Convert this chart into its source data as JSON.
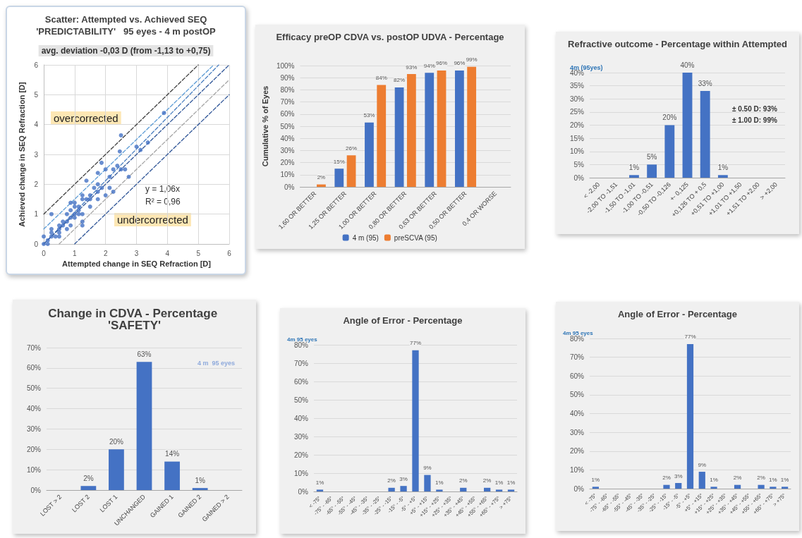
{
  "chart_data": [
    {
      "type": "scatter",
      "title": "Scatter: Attempted vs. Achieved SEQ",
      "subtitle": "'PREDICTABILITY'   95 eyes - 4 m postOP",
      "xlabel": "Attempted change in SEQ Refraction [D]",
      "ylabel": "Achieved change in SEQ Refraction [D]",
      "xlim": [
        0,
        6
      ],
      "xticks": [
        0,
        1,
        2,
        3,
        4,
        5,
        6
      ],
      "ylim": [
        0,
        6
      ],
      "yticks": [
        0,
        1,
        2,
        3,
        4,
        5,
        6
      ],
      "grid": true,
      "legend": false,
      "annotations": [
        "avg. deviation -0,03 D (from -1,13 to +0,75)",
        "overcorrected",
        "y = 1,06x",
        "R² = 0,96",
        "undercorrected"
      ],
      "series": [
        {
          "type": "scatter",
          "marker": "circle",
          "color": "#4472c4",
          "x": [
            0,
            0,
            0.13,
            0.13,
            0.25,
            0.25,
            0.25,
            0.25,
            0.38,
            0.5,
            0.5,
            0.5,
            0.5,
            0.62,
            0.62,
            0.75,
            0.75,
            0.75,
            0.87,
            0.87,
            0.87,
            0.87,
            1,
            1,
            1,
            1,
            1.13,
            1.13,
            1.13,
            1.25,
            1.25,
            1.25,
            1.25,
            1.25,
            1.38,
            1.38,
            1.5,
            1.5,
            1.5,
            1.63,
            1.75,
            1.75,
            1.75,
            1.75,
            1.87,
            1.88,
            2,
            2,
            2.13,
            2.13,
            2.25,
            2.25,
            2.38,
            2.46,
            2.5,
            2.5,
            2.63,
            2.75,
            3,
            3.13,
            3.37,
            3.89
          ],
          "values": [
            0,
            0.25,
            0,
            0.12,
            1,
            0.5,
            0.38,
            0.25,
            0.25,
            0.25,
            0.38,
            0.5,
            0.62,
            0.75,
            0.62,
            0.75,
            0.5,
            1,
            0.88,
            0.62,
            1.13,
            1.38,
            1.38,
            1.25,
            1,
            0.88,
            1.13,
            1,
            1.25,
            1,
            0.75,
            0.62,
            1.5,
            1.63,
            1.5,
            2.12,
            1.25,
            1.5,
            1.63,
            1.88,
            1.5,
            1.75,
            2,
            2.38,
            2.72,
            1.88,
            1.63,
            2.5,
            2.25,
            1.88,
            1.75,
            2.5,
            2.62,
            3.1,
            3.64,
            2.5,
            2.5,
            2.25,
            3.26,
            3.15,
            3.4,
            4.39
          ]
        },
        {
          "type": "line",
          "color": "#404040",
          "line_style": "dashed",
          "x": [
            0,
            5
          ],
          "values": [
            1,
            6
          ]
        },
        {
          "type": "line",
          "color": "#5b9bd5",
          "line_style": "dashed",
          "x": [
            0,
            5.5
          ],
          "values": [
            0.5,
            6
          ]
        },
        {
          "type": "line",
          "color": "#4a7fc0",
          "line_style": "dashed",
          "x": [
            0,
            5.66
          ],
          "values": [
            0,
            6
          ]
        },
        {
          "type": "line",
          "color": "#2f5597",
          "line_style": "dashed",
          "x": [
            0,
            6
          ],
          "values": [
            0,
            6
          ]
        },
        {
          "type": "line",
          "color": "#a6a6a6",
          "line_style": "dashed",
          "x": [
            0.5,
            6
          ],
          "values": [
            0,
            5.5
          ]
        },
        {
          "type": "line",
          "color": "#2f5597",
          "line_style": "dashed",
          "x": [
            1,
            6
          ],
          "values": [
            0,
            5
          ]
        }
      ]
    },
    {
      "type": "bar",
      "title": "Efficacy preOP CDVA vs. postOP UDVA - Percentage",
      "ylabel": "Cumulative % of Eyes",
      "categories": [
        "1,60 OR BETTER",
        "1,25 OR BETTER",
        "1,00 OR BETTER",
        "0,80 OR BETTER",
        "0,63 OR BETTER",
        "0,50 OR BETTER",
        "0,4 OR WORSE"
      ],
      "ylim": [
        0,
        100
      ],
      "yticks": [
        {
          "value": 0,
          "label": "0%"
        },
        {
          "value": 10,
          "label": "10%"
        },
        {
          "value": 20,
          "label": "20%"
        },
        {
          "value": 30,
          "label": "30%"
        },
        {
          "value": 40,
          "label": "40%"
        },
        {
          "value": 50,
          "label": "50%"
        },
        {
          "value": 60,
          "label": "60%"
        },
        {
          "value": 70,
          "label": "70%"
        },
        {
          "value": 80,
          "label": "80%"
        },
        {
          "value": 90,
          "label": "90%"
        },
        {
          "value": 100,
          "label": "100%"
        }
      ],
      "grid": "y",
      "legend": "bottom",
      "series": [
        {
          "name": "4 m (95)",
          "color": "#4472c4",
          "values": [
            0,
            15,
            53,
            82,
            94,
            96,
            0
          ],
          "value_labels": [
            null,
            "15%",
            "53%",
            "82%",
            "94%",
            "96%",
            null
          ]
        },
        {
          "name": "preSCVA (95)",
          "color": "#ed7d31",
          "values": [
            2,
            26,
            84,
            93,
            96,
            99,
            0
          ],
          "value_labels": [
            "2%",
            "26%",
            "84%",
            "93%",
            "96%",
            "99%",
            null
          ]
        }
      ]
    },
    {
      "type": "bar",
      "title": "Refractive outcome - Percentage within Attempted",
      "categories": [
        "< -2,00",
        "-2,00 TO -1,51",
        "-1,50 TO -1,01",
        "-1,00 TO -0,51",
        "-0,50 TO -0,126",
        "+- 0,125",
        "+0,126 TO + 0,5",
        "+0,51 TO +1,00",
        "+1,01 TO +1,50",
        "+1,51 TO +2,00",
        "> +2,00"
      ],
      "color": "#4472c4",
      "values": [
        0,
        0,
        1,
        5,
        20,
        40,
        33,
        1,
        0,
        0,
        0
      ],
      "value_labels": [
        null,
        null,
        "1%",
        "5%",
        "20%",
        "40%",
        "33%",
        "1%",
        null,
        null,
        null
      ],
      "ylim": [
        0,
        40
      ],
      "yticks": [
        {
          "value": 0,
          "label": "0%"
        },
        {
          "value": 5,
          "label": "5%"
        },
        {
          "value": 10,
          "label": "10%"
        },
        {
          "value": 15,
          "label": "15%"
        },
        {
          "value": 20,
          "label": "20%"
        },
        {
          "value": 25,
          "label": "25%"
        },
        {
          "value": 30,
          "label": "30%"
        },
        {
          "value": 35,
          "label": "35%"
        },
        {
          "value": 40,
          "label": "40%"
        }
      ],
      "grid": "y",
      "annotations": [
        "4m (95yes)",
        "± 0.50 D: 93%",
        "± 1.00 D: 99%"
      ]
    },
    {
      "type": "bar",
      "title": "Change in CDVA - Percentage 'SAFETY'",
      "categories": [
        "LOST > 2",
        "LOST 2",
        "LOST 1",
        "UNCHANGED",
        "GAINED 1",
        "GAINED 2",
        "GAINED > 2"
      ],
      "color": "#4472c4",
      "values": [
        0,
        2,
        20,
        63,
        14,
        1,
        0
      ],
      "value_labels": [
        null,
        "2%",
        "20%",
        "63%",
        "14%",
        "1%",
        null
      ],
      "ylim": [
        0,
        70
      ],
      "yticks": [
        {
          "value": 0,
          "label": "0%"
        },
        {
          "value": 10,
          "label": "10%"
        },
        {
          "value": 20,
          "label": "20%"
        },
        {
          "value": 30,
          "label": "30%"
        },
        {
          "value": 40,
          "label": "40%"
        },
        {
          "value": 50,
          "label": "50%"
        },
        {
          "value": 60,
          "label": "60%"
        },
        {
          "value": 70,
          "label": "70%"
        }
      ],
      "grid": "y",
      "annotations": [
        "4 m  95 eyes"
      ]
    },
    {
      "type": "bar",
      "title": "Angle of Error - Percentage",
      "categories": [
        "< -75°",
        "-75° - -65°",
        "-65° - -55°",
        "-55° - -45°",
        "-45° - -35°",
        "-35° - -25°",
        "-25° - -15°",
        "-15° - -5°",
        "-5° - +5°",
        "+5° - +15°",
        "+15° - +25°",
        "+25° - +35°",
        "+35° - +45°",
        "+45° - +55°",
        "+55° - +65°",
        "+65° - +75°",
        "> +75°"
      ],
      "color": "#4472c4",
      "values": [
        1,
        0,
        0,
        0,
        0,
        0,
        2,
        3,
        77,
        9,
        1,
        0,
        2,
        0,
        2,
        1,
        1
      ],
      "value_labels": [
        "1%",
        null,
        null,
        null,
        null,
        null,
        "2%",
        "3%",
        "77%",
        "9%",
        "1%",
        null,
        "2%",
        null,
        "2%",
        "1%",
        "1%"
      ],
      "ylim": [
        0,
        80
      ],
      "yticks": [
        {
          "value": 0,
          "label": "0%"
        },
        {
          "value": 10,
          "label": "10%"
        },
        {
          "value": 20,
          "label": "20%"
        },
        {
          "value": 30,
          "label": "30%"
        },
        {
          "value": 40,
          "label": "40%"
        },
        {
          "value": 50,
          "label": "50%"
        },
        {
          "value": 60,
          "label": "60%"
        },
        {
          "value": 70,
          "label": "70%"
        },
        {
          "value": 80,
          "label": "80%"
        }
      ],
      "grid": "y",
      "annotations": [
        "4m 95 eyes"
      ]
    },
    {
      "type": "bar",
      "title": "Angle of Error - Percentage",
      "categories": [
        "< -75°",
        "-75° - -65°",
        "-65° - -55°",
        "-55° - -45°",
        "-45° - -35°",
        "-35° - -25°",
        "-25° - -15°",
        "-15° - -5°",
        "-5° - +5°",
        "+5° - +15°",
        "+15° - +25°",
        "+25° - +35°",
        "+35° - +45°",
        "+45° - +55°",
        "+55° - +65°",
        "+65° - +75°",
        "> +75°"
      ],
      "color": "#4472c4",
      "values": [
        1,
        0,
        0,
        0,
        0,
        0,
        2,
        3,
        77,
        9,
        1,
        0,
        2,
        0,
        2,
        1,
        1
      ],
      "value_labels": [
        "1%",
        null,
        null,
        null,
        null,
        null,
        "2%",
        "3%",
        "77%",
        "9%",
        "1%",
        null,
        "2%",
        null,
        "2%",
        "1%",
        "1%"
      ],
      "ylim": [
        0,
        80
      ],
      "yticks": [
        {
          "value": 0,
          "label": "0%"
        },
        {
          "value": 10,
          "label": "10%"
        },
        {
          "value": 20,
          "label": "20%"
        },
        {
          "value": 30,
          "label": "30%"
        },
        {
          "value": 40,
          "label": "40%"
        },
        {
          "value": 50,
          "label": "50%"
        },
        {
          "value": 60,
          "label": "60%"
        },
        {
          "value": 70,
          "label": "70%"
        },
        {
          "value": 80,
          "label": "80%"
        }
      ],
      "grid": "y",
      "annotations": [
        "4m 95 eyes"
      ]
    }
  ]
}
